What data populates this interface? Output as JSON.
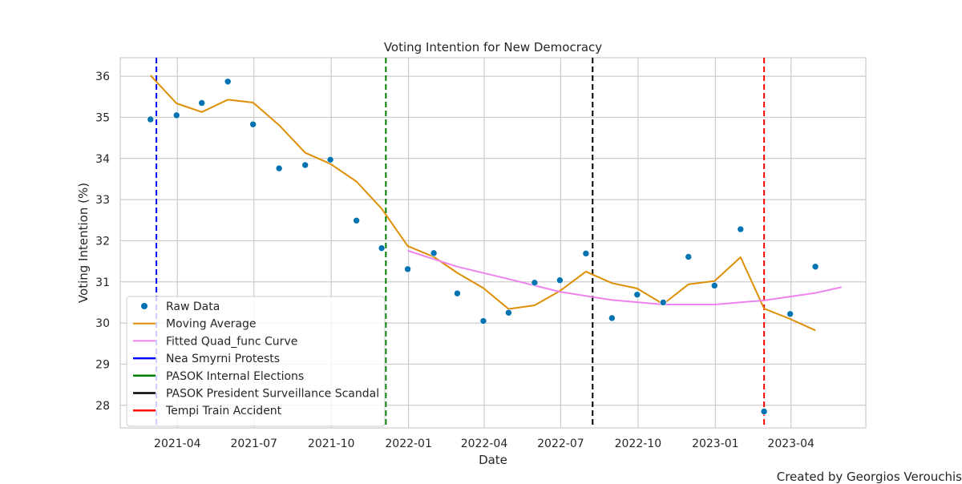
{
  "chart_data": {
    "type": "line",
    "title": "Voting Intention for New Democracy",
    "xlabel": "Date",
    "ylabel": "Voting Intention (%)",
    "xlim": [
      "2021-01-23",
      "2023-06-29"
    ],
    "ylim": [
      27.45,
      36.45
    ],
    "grid": true,
    "legend_position": "lower-left",
    "x_ticks": [
      "2021-04-01",
      "2021-07-01",
      "2021-10-01",
      "2022-01-01",
      "2022-04-01",
      "2022-07-01",
      "2022-10-01",
      "2023-01-01",
      "2023-04-01"
    ],
    "x_tick_labels": [
      "2021-04",
      "2021-07",
      "2021-10",
      "2022-01",
      "2022-04",
      "2022-07",
      "2022-10",
      "2023-01",
      "2023-04"
    ],
    "y_ticks": [
      28,
      29,
      30,
      31,
      32,
      33,
      34,
      35,
      36
    ],
    "series": [
      {
        "name": "Raw Data",
        "kind": "scatter",
        "color": "#0173b2",
        "x": [
          "2021-02-28",
          "2021-03-31",
          "2021-04-30",
          "2021-05-31",
          "2021-06-30",
          "2021-07-31",
          "2021-08-31",
          "2021-09-30",
          "2021-10-31",
          "2021-11-30",
          "2021-12-31",
          "2022-01-31",
          "2022-02-28",
          "2022-03-31",
          "2022-04-30",
          "2022-05-31",
          "2022-06-30",
          "2022-07-31",
          "2022-08-31",
          "2022-09-30",
          "2022-10-31",
          "2022-11-30",
          "2022-12-31",
          "2023-01-31",
          "2023-02-28",
          "2023-03-31",
          "2023-04-30"
        ],
        "y": [
          34.95,
          35.05,
          35.35,
          35.87,
          34.83,
          33.76,
          33.84,
          33.97,
          32.49,
          31.82,
          31.31,
          31.7,
          30.72,
          30.05,
          30.25,
          30.98,
          31.04,
          31.69,
          30.12,
          30.69,
          30.5,
          31.61,
          30.91,
          32.28,
          27.85,
          30.22,
          31.37
        ]
      },
      {
        "name": "Moving Average",
        "kind": "line",
        "color": "#de8f05",
        "x": [
          "2021-02-28",
          "2021-03-31",
          "2021-04-30",
          "2021-05-31",
          "2021-06-30",
          "2021-07-31",
          "2021-08-31",
          "2021-09-30",
          "2021-10-31",
          "2021-11-30",
          "2021-12-31",
          "2022-01-31",
          "2022-02-28",
          "2022-03-31",
          "2022-04-30",
          "2022-05-31",
          "2022-06-30",
          "2022-07-31",
          "2022-08-31",
          "2022-09-30",
          "2022-10-31",
          "2022-11-30",
          "2022-12-31",
          "2023-01-31",
          "2023-02-28",
          "2023-03-31",
          "2023-04-30"
        ],
        "y": [
          36.02,
          35.34,
          35.13,
          35.43,
          35.36,
          34.81,
          34.14,
          33.87,
          33.44,
          32.78,
          31.87,
          31.61,
          31.22,
          30.85,
          30.34,
          30.43,
          30.78,
          31.25,
          30.97,
          30.84,
          30.46,
          30.94,
          31.02,
          31.6,
          30.35,
          30.1,
          29.82
        ]
      },
      {
        "name": "Fitted Quad_func Curve",
        "kind": "line",
        "color": "#ee82ee",
        "x": [
          "2021-12-31",
          "2022-02-28",
          "2022-04-30",
          "2022-06-30",
          "2022-08-31",
          "2022-10-31",
          "2022-12-31",
          "2023-02-28",
          "2023-04-30",
          "2023-05-31"
        ],
        "y": [
          31.76,
          31.37,
          31.07,
          30.76,
          30.56,
          30.45,
          30.45,
          30.55,
          30.73,
          30.87
        ]
      }
    ],
    "events": [
      {
        "name": "Nea Smyrni Protests",
        "date": "2021-03-07",
        "color": "#0000ff"
      },
      {
        "name": "PASOK Internal Elections",
        "date": "2021-12-05",
        "color": "#008000"
      },
      {
        "name": "PASOK President Surveillance Scandal",
        "date": "2022-08-08",
        "color": "#000000"
      },
      {
        "name": "Tempi Train Accident",
        "date": "2023-02-28",
        "color": "#ff0000"
      }
    ]
  },
  "credit": "Created by Georgios Verouchis"
}
